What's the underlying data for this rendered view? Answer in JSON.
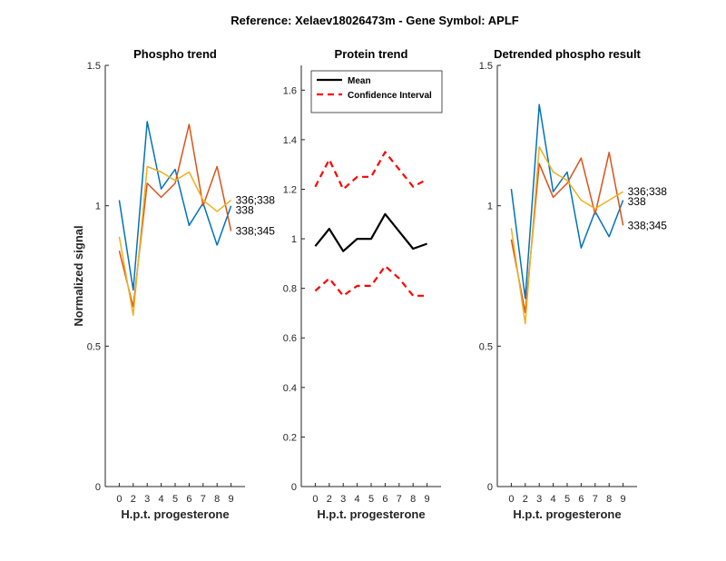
{
  "figure_title": "Reference:  Xelaev18026473m - Gene Symbol:  APLF",
  "chart_data": [
    {
      "type": "line",
      "title": "Phospho trend",
      "xlabel": "H.p.t. progesterone",
      "ylabel": "Normalized signal",
      "categories": [
        "0",
        "2",
        "3",
        "4",
        "5",
        "6",
        "7",
        "8",
        "9"
      ],
      "ylim": [
        0,
        1.5
      ],
      "yticks": [
        "0",
        "0.5",
        "1",
        "1.5"
      ],
      "series": [
        {
          "label": "338",
          "color": "#0072BD",
          "values": [
            1.02,
            0.7,
            1.3,
            1.06,
            1.13,
            0.93,
            1.01,
            0.86,
            1.0
          ]
        },
        {
          "label": "338;345",
          "color": "#D95319",
          "values": [
            0.84,
            0.64,
            1.08,
            1.03,
            1.08,
            1.29,
            1.0,
            1.14,
            0.91
          ]
        },
        {
          "label": "336;338",
          "color": "#EDB120",
          "values": [
            0.89,
            0.61,
            1.14,
            1.12,
            1.09,
            1.12,
            1.02,
            0.98,
            1.02
          ]
        }
      ]
    },
    {
      "type": "line",
      "title": "Protein trend",
      "xlabel": "H.p.t. progesterone",
      "ylabel": "",
      "categories": [
        "0",
        "2",
        "3",
        "4",
        "5",
        "6",
        "7",
        "8",
        "9"
      ],
      "ylim": [
        0,
        1.7
      ],
      "yticks": [
        "0",
        "0.2",
        "0.4",
        "0.6",
        "0.8",
        "1",
        "1.2",
        "1.4",
        "1.6"
      ],
      "legend_placement": "top-left",
      "series": [
        {
          "name": "Mean",
          "color": "#000000",
          "style": "solid",
          "values": [
            0.97,
            1.04,
            0.95,
            1.0,
            1.0,
            1.1,
            1.03,
            0.96,
            0.98
          ]
        },
        {
          "name": "Confidence Interval",
          "color": "#FF0000",
          "style": "dashed",
          "values": [
            1.21,
            1.32,
            1.2,
            1.25,
            1.25,
            1.35,
            1.28,
            1.21,
            1.24
          ]
        },
        {
          "name": "",
          "color": "#FF0000",
          "style": "dashed",
          "values": [
            0.79,
            0.84,
            0.77,
            0.81,
            0.81,
            0.89,
            0.84,
            0.77,
            0.77
          ]
        }
      ]
    },
    {
      "type": "line",
      "title": "Detrended phospho result",
      "xlabel": "H.p.t. progesterone",
      "ylabel": "",
      "categories": [
        "0",
        "2",
        "3",
        "4",
        "5",
        "6",
        "7",
        "8",
        "9"
      ],
      "ylim": [
        0,
        1.5
      ],
      "yticks": [
        "0",
        "0.5",
        "1",
        "1.5"
      ],
      "series": [
        {
          "label": "338",
          "color": "#0072BD",
          "values": [
            1.06,
            0.67,
            1.36,
            1.05,
            1.12,
            0.85,
            0.98,
            0.89,
            1.02
          ]
        },
        {
          "label": "338;345",
          "color": "#D95319",
          "values": [
            0.88,
            0.62,
            1.15,
            1.03,
            1.08,
            1.17,
            0.97,
            1.19,
            0.93
          ]
        },
        {
          "label": "336;338",
          "color": "#EDB120",
          "values": [
            0.92,
            0.58,
            1.21,
            1.12,
            1.09,
            1.02,
            0.99,
            1.02,
            1.05
          ]
        }
      ]
    }
  ]
}
